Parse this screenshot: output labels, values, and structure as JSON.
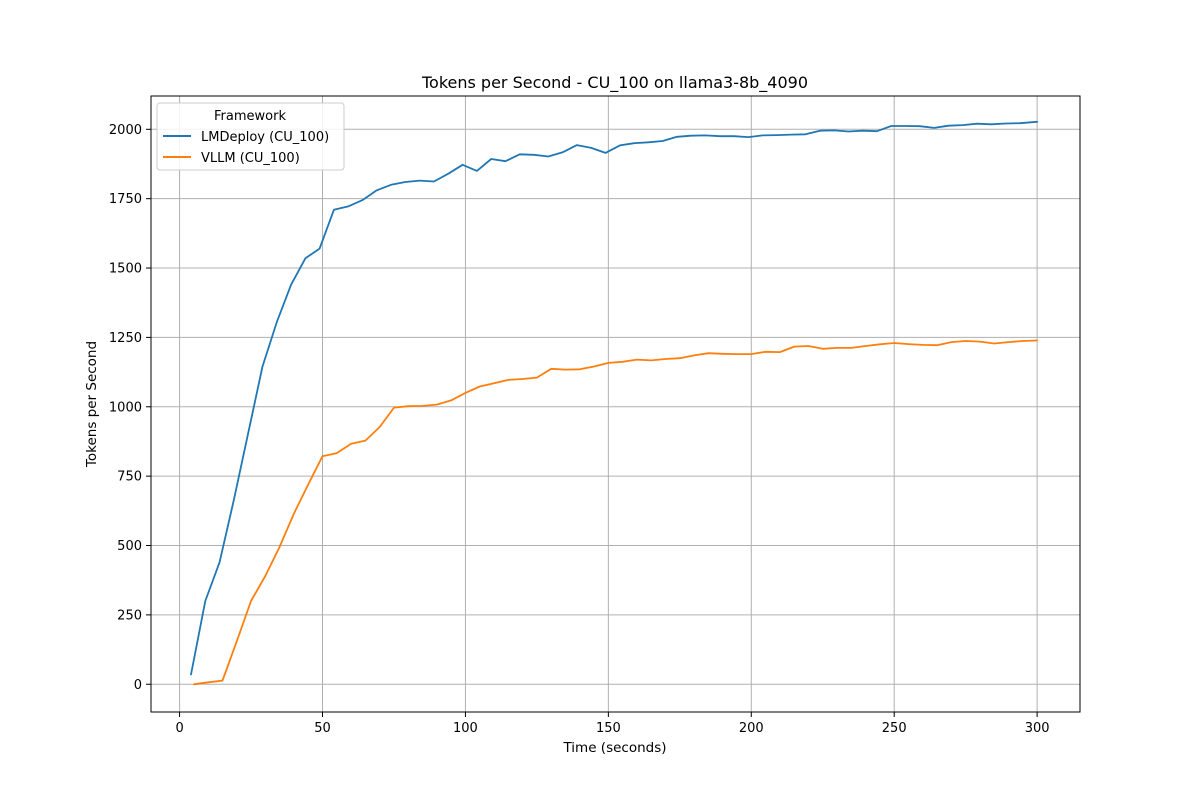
{
  "chart_data": {
    "type": "line",
    "title": "Tokens per Second - CU_100 on llama3-8b_4090",
    "xlabel": "Time (seconds)",
    "ylabel": "Tokens per Second",
    "xlim": [
      -10,
      315
    ],
    "ylim": [
      -100,
      2120
    ],
    "xticks": [
      0,
      50,
      100,
      150,
      200,
      250,
      300
    ],
    "yticks": [
      0,
      250,
      500,
      750,
      1000,
      1250,
      1500,
      1750,
      2000
    ],
    "xtick_labels": [
      "0",
      "50",
      "100",
      "150",
      "200",
      "250",
      "300"
    ],
    "ytick_labels": [
      "0",
      "250",
      "500",
      "750",
      "1000",
      "1250",
      "1500",
      "1750",
      "2000"
    ],
    "grid": true,
    "legend": {
      "title": "Framework",
      "placement": "top-left"
    },
    "series": [
      {
        "name": "LMDeploy (CU_100)",
        "color": "#1f77b4",
        "x": [
          4,
          9,
          14,
          19,
          24,
          29,
          34,
          39,
          44,
          49,
          54,
          59,
          64,
          69,
          74,
          79,
          84,
          89,
          94,
          99,
          104,
          109,
          114,
          119,
          124,
          129,
          134,
          139,
          144,
          149,
          154,
          159,
          164,
          169,
          174,
          179,
          184,
          189,
          194,
          199,
          204,
          209,
          214,
          219,
          224,
          229,
          234,
          239,
          244,
          249,
          254,
          259,
          264,
          269,
          274,
          279,
          284,
          289,
          294,
          300
        ],
        "y": [
          35,
          300,
          440,
          665,
          905,
          1145,
          1305,
          1440,
          1535,
          1570,
          1710,
          1722,
          1745,
          1780,
          1800,
          1810,
          1815,
          1812,
          1840,
          1872,
          1850,
          1893,
          1885,
          1910,
          1908,
          1902,
          1917,
          1943,
          1933,
          1915,
          1942,
          1950,
          1953,
          1958,
          1973,
          1977,
          1978,
          1975,
          1975,
          1972,
          1978,
          1979,
          1981,
          1982,
          1995,
          1996,
          1992,
          1995,
          1993,
          2012,
          2012,
          2011,
          2005,
          2013,
          2015,
          2020,
          2018,
          2021,
          2022,
          2027
        ]
      },
      {
        "name": "VLLM (CU_100)",
        "color": "#ff7f0e",
        "x": [
          5,
          10,
          15,
          20,
          25,
          30,
          35,
          40,
          45,
          50,
          55,
          60,
          65,
          70,
          75,
          80,
          85,
          90,
          95,
          100,
          105,
          110,
          115,
          120,
          125,
          130,
          135,
          140,
          145,
          150,
          155,
          160,
          165,
          170,
          175,
          180,
          185,
          190,
          195,
          200,
          205,
          210,
          215,
          220,
          225,
          230,
          235,
          240,
          245,
          250,
          255,
          260,
          265,
          270,
          275,
          280,
          285,
          290,
          295,
          300
        ],
        "y": [
          0,
          7,
          13,
          155,
          300,
          390,
          495,
          615,
          720,
          822,
          833,
          867,
          878,
          927,
          997,
          1002,
          1003,
          1008,
          1023,
          1050,
          1073,
          1085,
          1097,
          1100,
          1105,
          1137,
          1134,
          1135,
          1145,
          1158,
          1162,
          1170,
          1167,
          1172,
          1175,
          1185,
          1193,
          1191,
          1190,
          1190,
          1198,
          1197,
          1217,
          1219,
          1209,
          1212,
          1212,
          1219,
          1225,
          1230,
          1226,
          1223,
          1222,
          1233,
          1237,
          1235,
          1228,
          1233,
          1237,
          1239
        ]
      }
    ]
  }
}
